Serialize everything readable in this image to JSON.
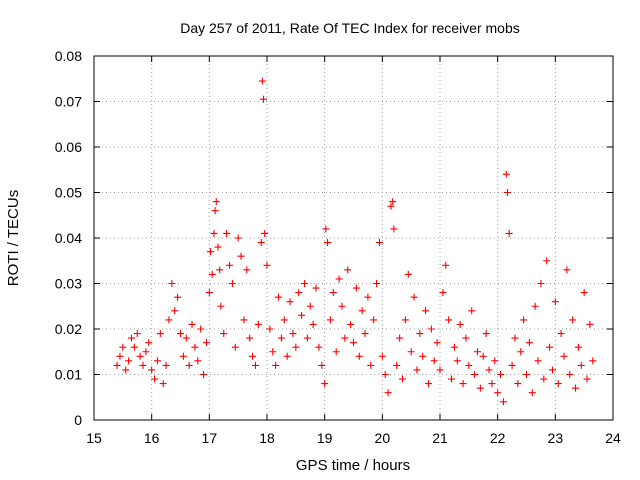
{
  "chart_data": {
    "type": "scatter",
    "title": "Day 257 of 2011, Rate Of TEC Index for receiver mobs",
    "xlabel": "GPS time / hours",
    "ylabel": "ROTI / TECUs",
    "xlim": [
      15,
      24
    ],
    "ylim": [
      0,
      0.08
    ],
    "xticks": [
      "15",
      "16",
      "17",
      "18",
      "19",
      "20",
      "21",
      "22",
      "23",
      "24"
    ],
    "yticks": [
      "0",
      "0.01",
      "0.02",
      "0.03",
      "0.04",
      "0.05",
      "0.06",
      "0.07",
      "0.08"
    ],
    "grid": true,
    "marker": "+",
    "series_color": "#ff0000",
    "series": [
      {
        "name": "ROTI",
        "points": [
          [
            15.4,
            0.012
          ],
          [
            15.45,
            0.014
          ],
          [
            15.5,
            0.016
          ],
          [
            15.55,
            0.011
          ],
          [
            15.6,
            0.013
          ],
          [
            15.65,
            0.018
          ],
          [
            15.7,
            0.016
          ],
          [
            15.75,
            0.019
          ],
          [
            15.8,
            0.014
          ],
          [
            15.85,
            0.012
          ],
          [
            15.9,
            0.015
          ],
          [
            15.95,
            0.017
          ],
          [
            16.0,
            0.011
          ],
          [
            16.05,
            0.009
          ],
          [
            16.1,
            0.013
          ],
          [
            16.15,
            0.019
          ],
          [
            16.2,
            0.008
          ],
          [
            16.25,
            0.012
          ],
          [
            16.3,
            0.022
          ],
          [
            16.35,
            0.03
          ],
          [
            16.4,
            0.024
          ],
          [
            16.45,
            0.027
          ],
          [
            16.5,
            0.019
          ],
          [
            16.55,
            0.014
          ],
          [
            16.6,
            0.018
          ],
          [
            16.65,
            0.012
          ],
          [
            16.7,
            0.021
          ],
          [
            16.75,
            0.016
          ],
          [
            16.8,
            0.013
          ],
          [
            16.85,
            0.02
          ],
          [
            16.9,
            0.01
          ],
          [
            16.95,
            0.017
          ],
          [
            17.0,
            0.028
          ],
          [
            17.02,
            0.037
          ],
          [
            17.05,
            0.032
          ],
          [
            17.08,
            0.041
          ],
          [
            17.1,
            0.046
          ],
          [
            17.12,
            0.048
          ],
          [
            17.15,
            0.038
          ],
          [
            17.18,
            0.033
          ],
          [
            17.2,
            0.025
          ],
          [
            17.25,
            0.019
          ],
          [
            17.3,
            0.041
          ],
          [
            17.35,
            0.034
          ],
          [
            17.4,
            0.03
          ],
          [
            17.45,
            0.016
          ],
          [
            17.5,
            0.04
          ],
          [
            17.55,
            0.036
          ],
          [
            17.6,
            0.022
          ],
          [
            17.65,
            0.033
          ],
          [
            17.7,
            0.018
          ],
          [
            17.75,
            0.014
          ],
          [
            17.8,
            0.012
          ],
          [
            17.85,
            0.021
          ],
          [
            17.9,
            0.039
          ],
          [
            17.92,
            0.0745
          ],
          [
            17.94,
            0.0705
          ],
          [
            17.96,
            0.041
          ],
          [
            18.0,
            0.034
          ],
          [
            18.05,
            0.02
          ],
          [
            18.1,
            0.015
          ],
          [
            18.15,
            0.012
          ],
          [
            18.2,
            0.027
          ],
          [
            18.25,
            0.018
          ],
          [
            18.3,
            0.022
          ],
          [
            18.35,
            0.014
          ],
          [
            18.4,
            0.026
          ],
          [
            18.45,
            0.019
          ],
          [
            18.5,
            0.016
          ],
          [
            18.55,
            0.028
          ],
          [
            18.6,
            0.023
          ],
          [
            18.65,
            0.03
          ],
          [
            18.7,
            0.018
          ],
          [
            18.75,
            0.025
          ],
          [
            18.8,
            0.021
          ],
          [
            18.85,
            0.029
          ],
          [
            18.9,
            0.016
          ],
          [
            18.95,
            0.012
          ],
          [
            19.0,
            0.008
          ],
          [
            19.02,
            0.042
          ],
          [
            19.05,
            0.039
          ],
          [
            19.1,
            0.022
          ],
          [
            19.15,
            0.028
          ],
          [
            19.2,
            0.015
          ],
          [
            19.25,
            0.031
          ],
          [
            19.3,
            0.025
          ],
          [
            19.35,
            0.018
          ],
          [
            19.4,
            0.033
          ],
          [
            19.45,
            0.021
          ],
          [
            19.5,
            0.017
          ],
          [
            19.55,
            0.029
          ],
          [
            19.6,
            0.014
          ],
          [
            19.65,
            0.024
          ],
          [
            19.7,
            0.019
          ],
          [
            19.75,
            0.027
          ],
          [
            19.8,
            0.012
          ],
          [
            19.85,
            0.022
          ],
          [
            19.9,
            0.03
          ],
          [
            19.95,
            0.039
          ],
          [
            20.0,
            0.014
          ],
          [
            20.05,
            0.01
          ],
          [
            20.1,
            0.006
          ],
          [
            20.15,
            0.047
          ],
          [
            20.18,
            0.048
          ],
          [
            20.2,
            0.042
          ],
          [
            20.25,
            0.012
          ],
          [
            20.3,
            0.018
          ],
          [
            20.35,
            0.009
          ],
          [
            20.4,
            0.022
          ],
          [
            20.45,
            0.032
          ],
          [
            20.5,
            0.015
          ],
          [
            20.55,
            0.027
          ],
          [
            20.6,
            0.011
          ],
          [
            20.65,
            0.019
          ],
          [
            20.7,
            0.014
          ],
          [
            20.75,
            0.024
          ],
          [
            20.8,
            0.008
          ],
          [
            20.85,
            0.02
          ],
          [
            20.9,
            0.013
          ],
          [
            20.95,
            0.017
          ],
          [
            21.0,
            0.011
          ],
          [
            21.05,
            0.028
          ],
          [
            21.1,
            0.034
          ],
          [
            21.15,
            0.022
          ],
          [
            21.2,
            0.009
          ],
          [
            21.25,
            0.016
          ],
          [
            21.3,
            0.013
          ],
          [
            21.35,
            0.021
          ],
          [
            21.4,
            0.008
          ],
          [
            21.45,
            0.018
          ],
          [
            21.5,
            0.012
          ],
          [
            21.55,
            0.024
          ],
          [
            21.6,
            0.01
          ],
          [
            21.65,
            0.015
          ],
          [
            21.7,
            0.007
          ],
          [
            21.75,
            0.014
          ],
          [
            21.8,
            0.019
          ],
          [
            21.85,
            0.011
          ],
          [
            21.9,
            0.008
          ],
          [
            21.95,
            0.013
          ],
          [
            22.0,
            0.006
          ],
          [
            22.05,
            0.01
          ],
          [
            22.1,
            0.004
          ],
          [
            22.15,
            0.054
          ],
          [
            22.17,
            0.05
          ],
          [
            22.2,
            0.041
          ],
          [
            22.25,
            0.012
          ],
          [
            22.3,
            0.018
          ],
          [
            22.35,
            0.008
          ],
          [
            22.4,
            0.015
          ],
          [
            22.45,
            0.022
          ],
          [
            22.5,
            0.01
          ],
          [
            22.55,
            0.017
          ],
          [
            22.6,
            0.006
          ],
          [
            22.65,
            0.025
          ],
          [
            22.7,
            0.013
          ],
          [
            22.75,
            0.03
          ],
          [
            22.8,
            0.009
          ],
          [
            22.85,
            0.035
          ],
          [
            22.9,
            0.016
          ],
          [
            22.95,
            0.011
          ],
          [
            23.0,
            0.026
          ],
          [
            23.05,
            0.008
          ],
          [
            23.1,
            0.019
          ],
          [
            23.15,
            0.014
          ],
          [
            23.2,
            0.033
          ],
          [
            23.25,
            0.01
          ],
          [
            23.3,
            0.022
          ],
          [
            23.35,
            0.007
          ],
          [
            23.4,
            0.016
          ],
          [
            23.45,
            0.012
          ],
          [
            23.5,
            0.028
          ],
          [
            23.55,
            0.009
          ],
          [
            23.6,
            0.021
          ],
          [
            23.65,
            0.013
          ]
        ]
      }
    ]
  }
}
